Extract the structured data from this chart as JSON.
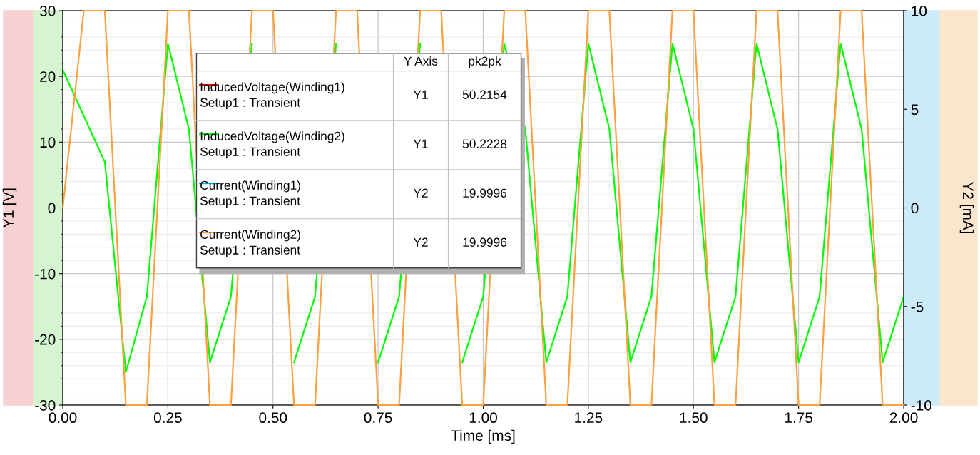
{
  "chart_data": {
    "type": "line",
    "xlabel": "Time [ms]",
    "ylabel": "Y1 [V]",
    "y2label": "Y2 [mA]",
    "x": [
      0,
      0.05,
      0.1,
      0.15,
      0.2,
      0.25,
      0.3,
      0.35,
      0.4,
      0.45,
      0.5,
      0.55,
      0.6,
      0.65,
      0.7,
      0.75,
      0.8,
      0.85,
      0.9,
      0.95,
      1.0,
      1.05,
      1.1,
      1.15,
      1.2,
      1.25,
      1.3,
      1.35,
      1.4,
      1.45,
      1.5,
      1.55,
      1.6,
      1.65,
      1.7,
      1.75,
      1.8,
      1.85,
      1.9,
      1.95,
      2.0
    ],
    "series": [
      {
        "name": "InducedVoltage(Winding1)\nSetup1 : Transient",
        "color": "#ff0000",
        "axis": "y",
        "values": [
          null,
          null,
          null,
          null,
          null,
          null,
          null,
          null,
          null,
          null,
          null,
          null,
          null,
          null,
          null,
          null,
          null,
          null,
          null,
          null,
          null,
          null,
          null,
          null,
          null,
          null,
          null,
          null,
          null,
          null,
          null,
          null,
          null,
          null,
          null,
          null,
          null,
          null,
          null,
          null,
          null
        ]
      },
      {
        "name": "InducedVoltage(Winding2)\nSetup1 : Transient",
        "color": "#00ff00",
        "axis": "y",
        "values": [
          21,
          14,
          7,
          -25,
          -13.5,
          25,
          12,
          -23.5,
          -13.5,
          25,
          null,
          -23.5,
          -13.5,
          25,
          null,
          -23.5,
          -13.5,
          25,
          null,
          -23.5,
          -13.5,
          25,
          12,
          -23.5,
          -13.5,
          25,
          12,
          -23.5,
          -13.5,
          25,
          12,
          -23.5,
          -13.5,
          25,
          12,
          -23.5,
          -13.5,
          25,
          12,
          -23.5,
          -13.5
        ]
      },
      {
        "name": "Current(Winding1)\nSetup1 : Transient",
        "color": "#00b0f0",
        "axis": "y2",
        "values": [
          null,
          null,
          null,
          null,
          null,
          null,
          null,
          null,
          null,
          null,
          null,
          null,
          null,
          null,
          null,
          null,
          null,
          null,
          null,
          null,
          null,
          null,
          null,
          null,
          null,
          null,
          null,
          null,
          null,
          null,
          null,
          null,
          null,
          null,
          null,
          null,
          null,
          null,
          null,
          null,
          null
        ]
      },
      {
        "name": "Current(Winding2)\nSetup1 : Transient",
        "color": "#ffa040",
        "axis": "y2",
        "values": [
          0,
          10,
          10,
          -10,
          -10,
          10,
          10,
          -10,
          -10,
          10,
          10,
          -10,
          -10,
          10,
          10,
          -10,
          -10,
          10,
          10,
          -10,
          -10,
          10,
          10,
          -10,
          -10,
          10,
          10,
          -10,
          -10,
          10,
          10,
          -10,
          -10,
          10,
          10,
          -10,
          -10,
          10,
          10,
          -10,
          -10
        ]
      }
    ],
    "xlim": [
      0,
      2
    ],
    "xticks": [
      {
        "value": 0,
        "label": "0.00"
      },
      {
        "value": 0.25,
        "label": "0.25"
      },
      {
        "value": 0.5,
        "label": "0.50"
      },
      {
        "value": 0.75,
        "label": "0.75"
      },
      {
        "value": 1,
        "label": "1.00"
      },
      {
        "value": 1.25,
        "label": "1.25"
      },
      {
        "value": 1.5,
        "label": "1.50"
      },
      {
        "value": 1.75,
        "label": "1.75"
      },
      {
        "value": 2,
        "label": "2.00"
      }
    ],
    "ylim": [
      -30,
      30
    ],
    "yticks": [
      -30,
      -20,
      -10,
      0,
      10,
      20,
      30
    ],
    "y2lim": [
      -10,
      10
    ],
    "y2ticks": [
      -10,
      -5,
      0,
      5,
      10
    ],
    "grid": true,
    "legend": "top",
    "line_style": "solid",
    "marker": "none",
    "annotations": [
      "Y Axis",
      "pk2pk",
      "Y1",
      "50.2154",
      "Y1",
      "50.2228",
      "Y2",
      "19.9996",
      "Y2",
      "19.9996"
    ]
  }
}
